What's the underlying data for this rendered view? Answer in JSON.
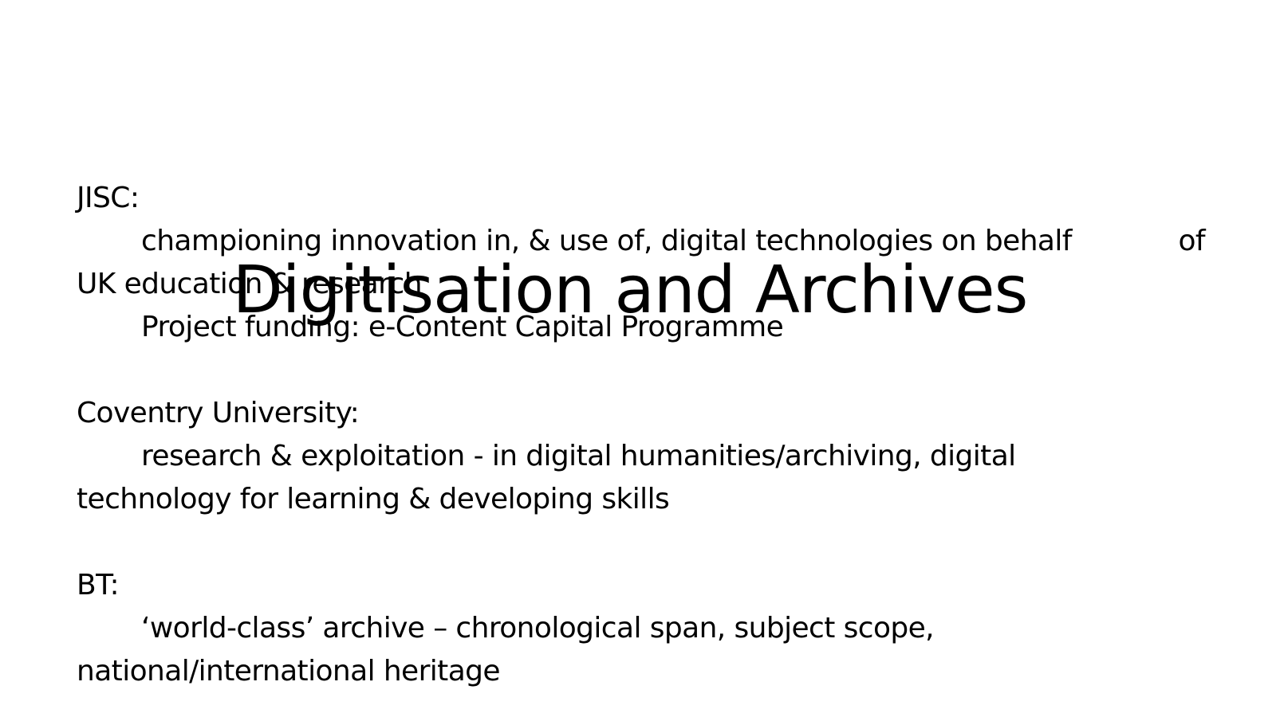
{
  "slide": {
    "title": "Digitisation and Archives",
    "sections": [
      {
        "heading": "JISC:",
        "line1_main": "championing  innovation in, & use of, digital technologies on behalf",
        "line1_end": "of",
        "line2": "UK education & research",
        "line3": "Project funding: e-Content Capital Programme"
      },
      {
        "heading": "Coventry University:",
        "line1": "research & exploitation - in digital humanities/archiving, digital",
        "line2": "technology for learning & developing skills"
      },
      {
        "heading": "BT:",
        "line1": "‘world-class’ archive – chronological span, subject scope,",
        "line2": "national/international heritage"
      }
    ]
  }
}
